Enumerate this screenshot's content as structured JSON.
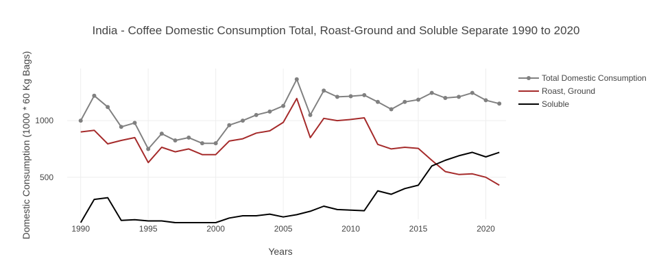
{
  "chart_data": {
    "type": "line",
    "title": "India - Coffee Domestic Consumption Total, Roast-Ground and Soluble Separate  1990 to 2020",
    "xlabel": "Years",
    "ylabel": "Domestic Consumption (1000 * 60 Kg Bags)",
    "x": [
      1990,
      1991,
      1992,
      1993,
      1994,
      1995,
      1996,
      1997,
      1998,
      1999,
      2000,
      2001,
      2002,
      2003,
      2004,
      2005,
      2006,
      2007,
      2008,
      2009,
      2010,
      2011,
      2012,
      2013,
      2014,
      2015,
      2016,
      2017,
      2018,
      2019,
      2020,
      2021
    ],
    "xlim": [
      1989,
      2021.5
    ],
    "ylim": [
      130,
      1460
    ],
    "x_ticks": [
      1990,
      1995,
      2000,
      2005,
      2010,
      2015,
      2020
    ],
    "x_tick_labels": [
      "1990",
      "1995",
      "2000",
      "2005",
      "2010",
      "2015",
      "2020"
    ],
    "y_ticks": [
      500,
      1000
    ],
    "y_tick_labels": [
      "500",
      "1000"
    ],
    "grid": true,
    "legend": "right",
    "series": [
      {
        "name": "Total Domestic Consumption",
        "color": "#808080",
        "markers": true,
        "values": [
          1000,
          1220,
          1120,
          945,
          980,
          750,
          885,
          825,
          850,
          800,
          800,
          960,
          1000,
          1050,
          1080,
          1130,
          1365,
          1050,
          1265,
          1210,
          1215,
          1225,
          1165,
          1100,
          1165,
          1185,
          1245,
          1200,
          1210,
          1245,
          1180,
          1150
        ]
      },
      {
        "name": "Roast, Ground",
        "color": "#a52a2a",
        "markers": false,
        "values": [
          900,
          915,
          795,
          825,
          850,
          630,
          765,
          725,
          750,
          700,
          700,
          820,
          840,
          890,
          910,
          985,
          1195,
          850,
          1020,
          1000,
          1010,
          1025,
          790,
          750,
          765,
          755,
          650,
          550,
          525,
          530,
          500,
          430
        ]
      },
      {
        "name": "Soluble",
        "color": "#000000",
        "markers": false,
        "values": [
          100,
          305,
          320,
          120,
          125,
          115,
          115,
          100,
          100,
          100,
          100,
          140,
          160,
          160,
          175,
          150,
          170,
          200,
          245,
          215,
          210,
          205,
          380,
          350,
          400,
          430,
          600,
          650,
          690,
          720,
          680,
          720
        ]
      }
    ]
  }
}
